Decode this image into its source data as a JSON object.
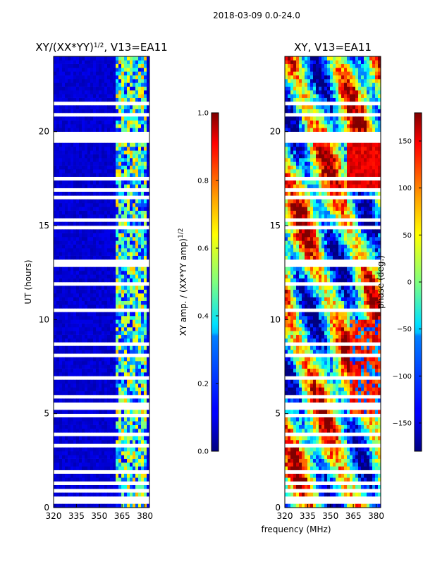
{
  "suptitle": "2018-03-09 0.0-24.0",
  "chart_data": [
    {
      "type": "heatmap",
      "title": "XY/(XX*YY)",
      "title_superscript": "1/2",
      "title_suffix": ", V13=EA11",
      "xlabel": "",
      "ylabel": "UT (hours)",
      "xlim": [
        320,
        383
      ],
      "ylim": [
        0,
        24
      ],
      "xticks": [
        "320",
        "335",
        "350",
        "365",
        "380"
      ],
      "yticks": [
        "0",
        "5",
        "10",
        "15",
        "20"
      ],
      "colorbar": {
        "label": "XY amp. / (XX*YY amp)",
        "label_superscript": "1/2",
        "range": [
          0.0,
          1.0
        ],
        "ticks": [
          "0.0",
          "0.2",
          "0.4",
          "0.6",
          "0.8",
          "1.0"
        ],
        "colormap": "jet"
      },
      "description_values": {
        "background_amplitude": 0.05,
        "bright_band_freq_range_MHz": [
          360,
          380
        ],
        "bright_band_amplitude_range": [
          0.3,
          0.7
        ],
        "flagged_gap_hours": [
          19.4,
          20.0
        ]
      }
    },
    {
      "type": "heatmap",
      "title": "XY, V13=EA11",
      "xlabel": "frequency (MHz)",
      "ylabel": "",
      "xlim": [
        320,
        383
      ],
      "ylim": [
        0,
        24
      ],
      "xticks": [
        "320",
        "335",
        "350",
        "365",
        "380"
      ],
      "yticks": [
        "0",
        "5",
        "10",
        "15",
        "20"
      ],
      "colorbar": {
        "label": "phase (deg.)",
        "range": [
          -180,
          180
        ],
        "ticks": [
          "−150",
          "−100",
          "−50",
          "0",
          "50",
          "100",
          "150"
        ],
        "colormap": "jet"
      },
      "description_values": {
        "phase_range_deg": [
          -180,
          180
        ],
        "flagged_gap_hours": [
          19.4,
          20.0
        ]
      }
    }
  ]
}
